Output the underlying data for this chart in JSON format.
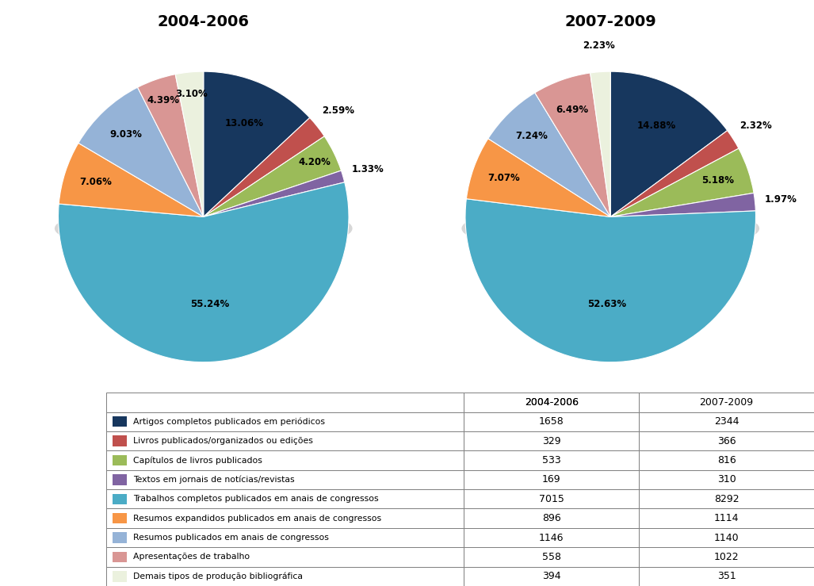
{
  "title1": "2004-2006",
  "title2": "2007-2009",
  "categories": [
    "Artigos completos publicados em periódicos",
    "Livros publicados/organizados ou edições",
    "Capítulos de livros publicados",
    "Textos em jornais de notícias/revistas",
    "Trabalhos completos publicados em anais de congressos",
    "Resumos expandidos publicados em anais de congressos",
    "Resumos publicados em anais de congressos",
    "Apresentações de trabalho",
    "Demais tipos de produção bibliográfica"
  ],
  "colors": [
    "#17375e",
    "#c0504d",
    "#9bbb59",
    "#8064a2",
    "#4bacc6",
    "#f79646",
    "#95b3d7",
    "#d99694",
    "#ebf1de"
  ],
  "values1": [
    1658,
    329,
    533,
    169,
    7015,
    896,
    1146,
    558,
    394
  ],
  "values2": [
    2344,
    366,
    816,
    310,
    8292,
    1114,
    1140,
    1022,
    351
  ],
  "pct1": [
    13.06,
    2.59,
    4.2,
    1.33,
    55.24,
    7.06,
    9.03,
    4.39,
    3.1
  ],
  "pct2": [
    14.88,
    2.32,
    5.18,
    1.97,
    52.63,
    7.07,
    7.24,
    6.49,
    2.23
  ],
  "col_headers": [
    "2004-2006",
    "2007-2009"
  ]
}
